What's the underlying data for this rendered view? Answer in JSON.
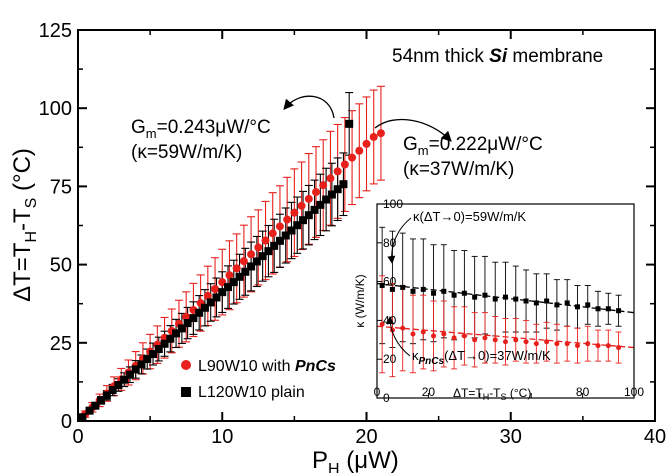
{
  "chart_data": [
    {
      "type": "scatter",
      "xlabel": "P_H (μW)",
      "ylabel": "ΔT=T_H-T_S (°C)",
      "xlim": [
        0,
        40
      ],
      "ylim": [
        0,
        125
      ],
      "xticks": [
        0,
        10,
        20,
        30,
        40
      ],
      "yticks": [
        0,
        25,
        50,
        75,
        100,
        125
      ],
      "legend_position": "bottom-left",
      "series": [
        {
          "name": "L90W10 with PnCs",
          "marker": "circle",
          "color": "#e8201c",
          "x": [
            0.5,
            1.0,
            1.5,
            2.0,
            2.5,
            3.0,
            3.5,
            4.0,
            4.5,
            5.0,
            5.5,
            6.0,
            6.5,
            7.0,
            7.5,
            8.0,
            8.5,
            9.0,
            9.5,
            10.0,
            10.5,
            11.0,
            11.5,
            12.0,
            12.5,
            13.0,
            13.5,
            14.0,
            14.5,
            15.0,
            15.5,
            16.0,
            16.5,
            17.0,
            17.5,
            18.0,
            18.5,
            19.0,
            19.5,
            20.0,
            20.5,
            21.0
          ],
          "y": [
            2.2,
            4.4,
            6.6,
            8.8,
            11.1,
            13.3,
            15.5,
            17.7,
            20.0,
            22.2,
            24.4,
            26.6,
            28.8,
            31.1,
            33.3,
            35.5,
            37.7,
            40.0,
            42.2,
            44.4,
            46.6,
            48.8,
            51.1,
            53.3,
            55.5,
            57.7,
            60.0,
            62.2,
            64.4,
            66.6,
            68.8,
            71.0,
            73.2,
            75.4,
            77.6,
            79.8,
            82.0,
            84.2,
            86.4,
            88.6,
            90.8,
            92.0
          ],
          "err": [
            1.0,
            1.5,
            2.0,
            2.5,
            3.0,
            3.5,
            4.0,
            4.5,
            5.0,
            5.5,
            6.0,
            6.5,
            7.0,
            7.5,
            8.0,
            8.5,
            9.0,
            9.5,
            10.0,
            10.5,
            11.0,
            11.0,
            11.5,
            12.0,
            12.0,
            12.5,
            13.0,
            13.0,
            13.5,
            14.0,
            14.0,
            14.5,
            14.5,
            14.5,
            15.0,
            15.0,
            15.0,
            15.0,
            15.0,
            15.0,
            15.0,
            15.0
          ]
        },
        {
          "name": "L120W10 plain",
          "marker": "square",
          "color": "#000000",
          "x": [
            0.3,
            0.8,
            1.2,
            1.6,
            2.0,
            2.4,
            2.8,
            3.2,
            3.6,
            4.0,
            4.4,
            4.8,
            5.2,
            5.6,
            6.0,
            6.4,
            6.8,
            7.2,
            7.6,
            8.0,
            8.4,
            8.8,
            9.2,
            9.6,
            10.0,
            10.4,
            10.8,
            11.2,
            11.6,
            12.0,
            12.4,
            12.8,
            13.2,
            13.6,
            14.0,
            14.4,
            14.8,
            15.2,
            15.6,
            16.0,
            16.4,
            16.8,
            17.2,
            17.6,
            18.0,
            18.4,
            18.8
          ],
          "y": [
            1.2,
            3.3,
            4.9,
            6.6,
            8.2,
            9.9,
            11.5,
            13.2,
            14.8,
            16.5,
            18.1,
            19.8,
            21.4,
            23.0,
            24.7,
            26.3,
            28.0,
            29.6,
            31.3,
            32.9,
            34.6,
            36.2,
            37.9,
            39.5,
            41.2,
            42.8,
            44.4,
            46.1,
            47.7,
            49.4,
            51.0,
            52.7,
            54.3,
            56.0,
            57.6,
            59.3,
            60.9,
            62.6,
            64.2,
            65.8,
            67.5,
            69.1,
            70.8,
            72.4,
            74.1,
            75.7,
            95.0
          ],
          "err": [
            0.5,
            0.8,
            1.0,
            1.2,
            1.5,
            1.8,
            2.0,
            2.2,
            2.5,
            2.8,
            3.0,
            3.2,
            3.5,
            3.8,
            4.0,
            4.2,
            4.5,
            4.8,
            5.0,
            5.2,
            5.5,
            5.8,
            6.0,
            6.2,
            6.5,
            6.8,
            7.0,
            7.2,
            7.5,
            7.8,
            8.0,
            8.0,
            8.2,
            8.5,
            8.5,
            8.8,
            9.0,
            9.0,
            9.2,
            9.5,
            9.5,
            9.8,
            10.0,
            10.0,
            10.0,
            10.0,
            10.0
          ]
        }
      ],
      "annotations": {
        "title_text": "54nm thick Si membrane",
        "title_prefix": "54nm thick ",
        "title_em": "Si",
        "title_suffix": " membrane",
        "gm_plain_main": "G",
        "gm_plain_sub": "m",
        "gm_plain_value": "=0.243μW/°C",
        "kappa_plain": "(κ=59W/m/K)",
        "gm_pncs_main": "G",
        "gm_pncs_sub": "m",
        "gm_pncs_value": "=0.222μW/°C",
        "kappa_pncs": "(κ=37W/m/K)"
      },
      "legend": {
        "pncs_prefix": "L90W10 with ",
        "pncs_em": "PnCs",
        "plain_label": "L120W10 plain"
      },
      "axis_text": {
        "x_main": "P",
        "x_sub": "H",
        "x_unit": " (μW)",
        "y_main": "ΔT=T",
        "y_sub1": "H",
        "y_mid": "-T",
        "y_sub2": "S",
        "y_unit": " (°C)"
      }
    },
    {
      "type": "scatter",
      "inset": true,
      "xlabel": "ΔT=T_H-T_S (°C)",
      "ylabel": "κ (W/m/K)",
      "xlim": [
        0,
        100
      ],
      "ylim": [
        0,
        100
      ],
      "xticks": [
        0,
        20,
        40,
        60,
        80,
        100
      ],
      "yticks": [
        0,
        20,
        40,
        60,
        80,
        100
      ],
      "series": [
        {
          "name": "L120W10 plain",
          "color": "#000000",
          "x": [
            2,
            6,
            10,
            14,
            18,
            22,
            26,
            30,
            34,
            38,
            42,
            46,
            50,
            54,
            58,
            62,
            66,
            70,
            74,
            78,
            82,
            86,
            90,
            94
          ],
          "y": [
            58,
            56,
            57,
            55,
            56,
            54,
            55,
            53,
            54,
            52,
            53,
            51,
            52,
            51,
            50,
            49,
            50,
            48,
            49,
            47,
            48,
            46,
            46,
            45
          ],
          "err": [
            30,
            30,
            28,
            27,
            26,
            25,
            24,
            23,
            22,
            21,
            20,
            19,
            18,
            17,
            16,
            15,
            14,
            13,
            12,
            11,
            10,
            9,
            8,
            8
          ]
        },
        {
          "name": "L90W10 with PnCs",
          "color": "#e8201c",
          "x": [
            2,
            6,
            10,
            14,
            18,
            22,
            26,
            30,
            34,
            38,
            42,
            46,
            50,
            54,
            58,
            62,
            66,
            70,
            74,
            78,
            82,
            86,
            90,
            94
          ],
          "y": [
            38,
            35,
            36,
            33,
            34,
            32,
            33,
            31,
            32,
            30,
            31,
            30,
            29,
            30,
            29,
            28,
            29,
            28,
            28,
            27,
            28,
            27,
            27,
            26
          ],
          "err": [
            25,
            24,
            22,
            20,
            19,
            18,
            17,
            16,
            15,
            14,
            13,
            12,
            12,
            11,
            11,
            10,
            10,
            10,
            9,
            9,
            9,
            8,
            8,
            8
          ]
        }
      ],
      "fit_lines": [
        {
          "series": "L120W10 plain",
          "x": [
            0,
            100
          ],
          "y": [
            59,
            44
          ]
        },
        {
          "series": "L90W10 with PnCs",
          "x": [
            0,
            100
          ],
          "y": [
            37,
            26
          ]
        }
      ],
      "annotations": {
        "kappa_plain_prefix": "κ(ΔT→0)=59W/m/K",
        "kappa_pncs_main": "κ",
        "kappa_pncs_sub": "PnCs",
        "kappa_pncs_rest": "(ΔT→0)=37W/m/K",
        "x_main": "ΔT=T",
        "x_sub1": "H",
        "x_mid": "-T",
        "x_sub2": "S",
        "x_unit": " (°C)",
        "ylabel_text": "κ (W/m/K)"
      }
    }
  ],
  "colors": {
    "pncs": "#e8201c",
    "plain": "#000000",
    "inset_fit_plain": "#000000",
    "inset_fit_pncs": "#e8201c"
  }
}
